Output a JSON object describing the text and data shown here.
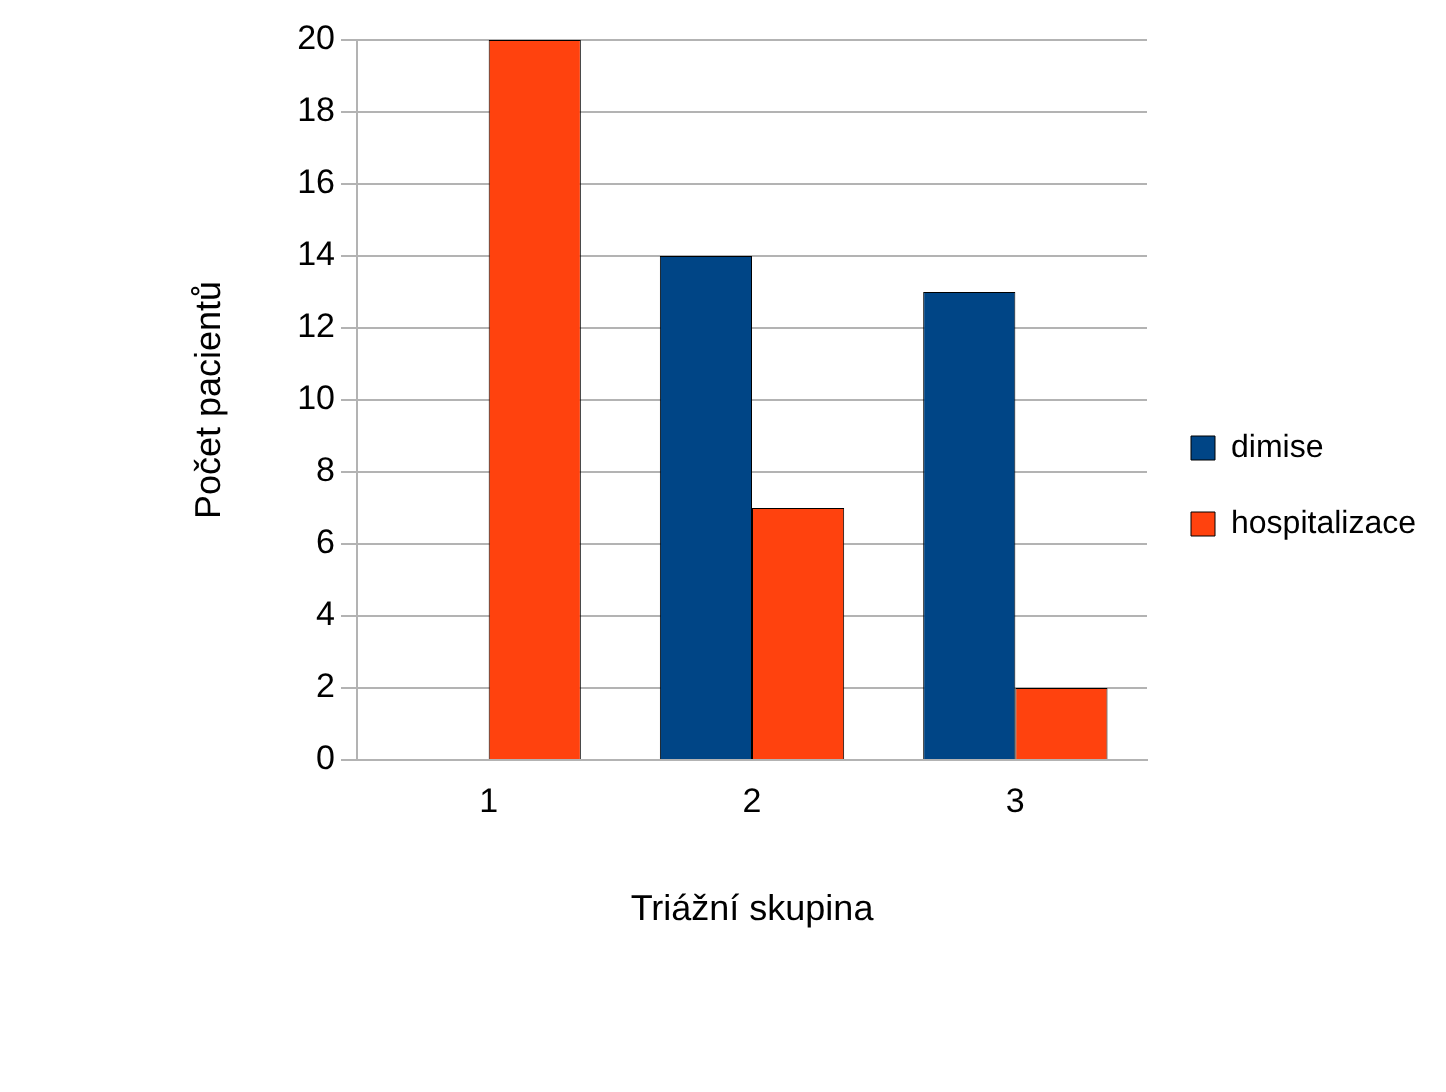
{
  "chart_data": {
    "type": "bar",
    "xlabel": "Triážní skupina",
    "ylabel": "Počet pacientů",
    "categories": [
      "1",
      "2",
      "3"
    ],
    "series": [
      {
        "name": "dimise",
        "color": "#004586",
        "values": [
          0,
          14,
          13
        ]
      },
      {
        "name": "hospitalizace",
        "color": "#ff420e",
        "values": [
          20,
          7,
          2
        ]
      }
    ],
    "ylim": [
      0,
      20
    ],
    "yticks": [
      0,
      2,
      4,
      6,
      8,
      10,
      12,
      14,
      16,
      18,
      20
    ],
    "grid": "y",
    "legend": "right"
  }
}
